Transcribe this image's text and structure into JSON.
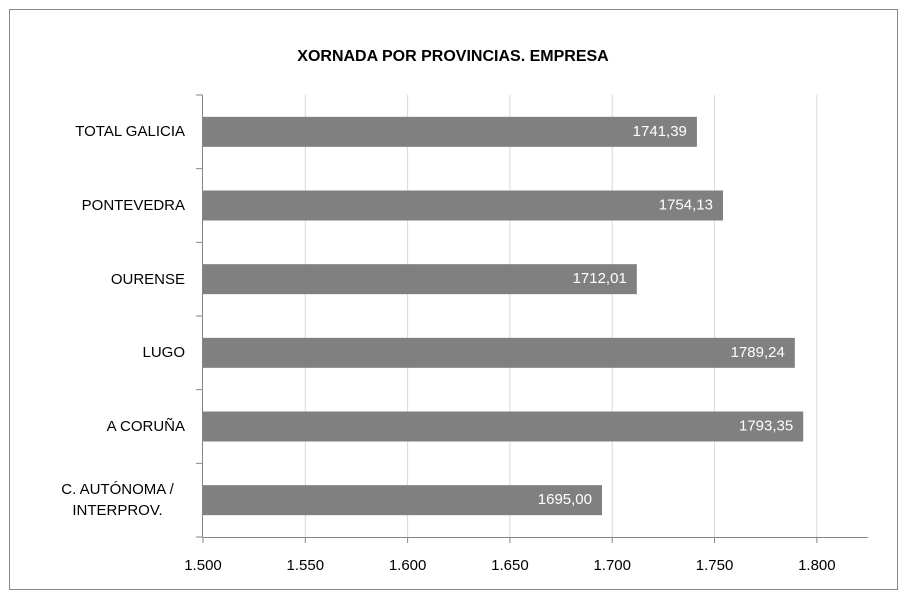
{
  "chart_data": {
    "type": "bar",
    "orientation": "horizontal",
    "title": "XORNADA POR PROVINCIAS. EMPRESA",
    "categories": [
      "TOTAL GALICIA",
      "PONTEVEDRA",
      "OURENSE",
      "LUGO",
      "A CORUÑA",
      "C. AUTÓNOMA / INTERPROV."
    ],
    "values": [
      1741.39,
      1754.13,
      1712.01,
      1789.24,
      1793.35,
      1695.0
    ],
    "value_labels": [
      "1741,39",
      "1754,13",
      "1712,01",
      "1789,24",
      "1793,35",
      "1695,00"
    ],
    "color": "#808080",
    "xlim": [
      1500,
      1825
    ],
    "xticks": [
      {
        "value": 1500,
        "label": "1.500"
      },
      {
        "value": 1550,
        "label": "1.550"
      },
      {
        "value": 1600,
        "label": "1.600"
      },
      {
        "value": 1650,
        "label": "1.650"
      },
      {
        "value": 1700,
        "label": "1.700"
      },
      {
        "value": 1750,
        "label": "1.750"
      },
      {
        "value": 1800,
        "label": "1.800"
      }
    ],
    "grid": true
  }
}
